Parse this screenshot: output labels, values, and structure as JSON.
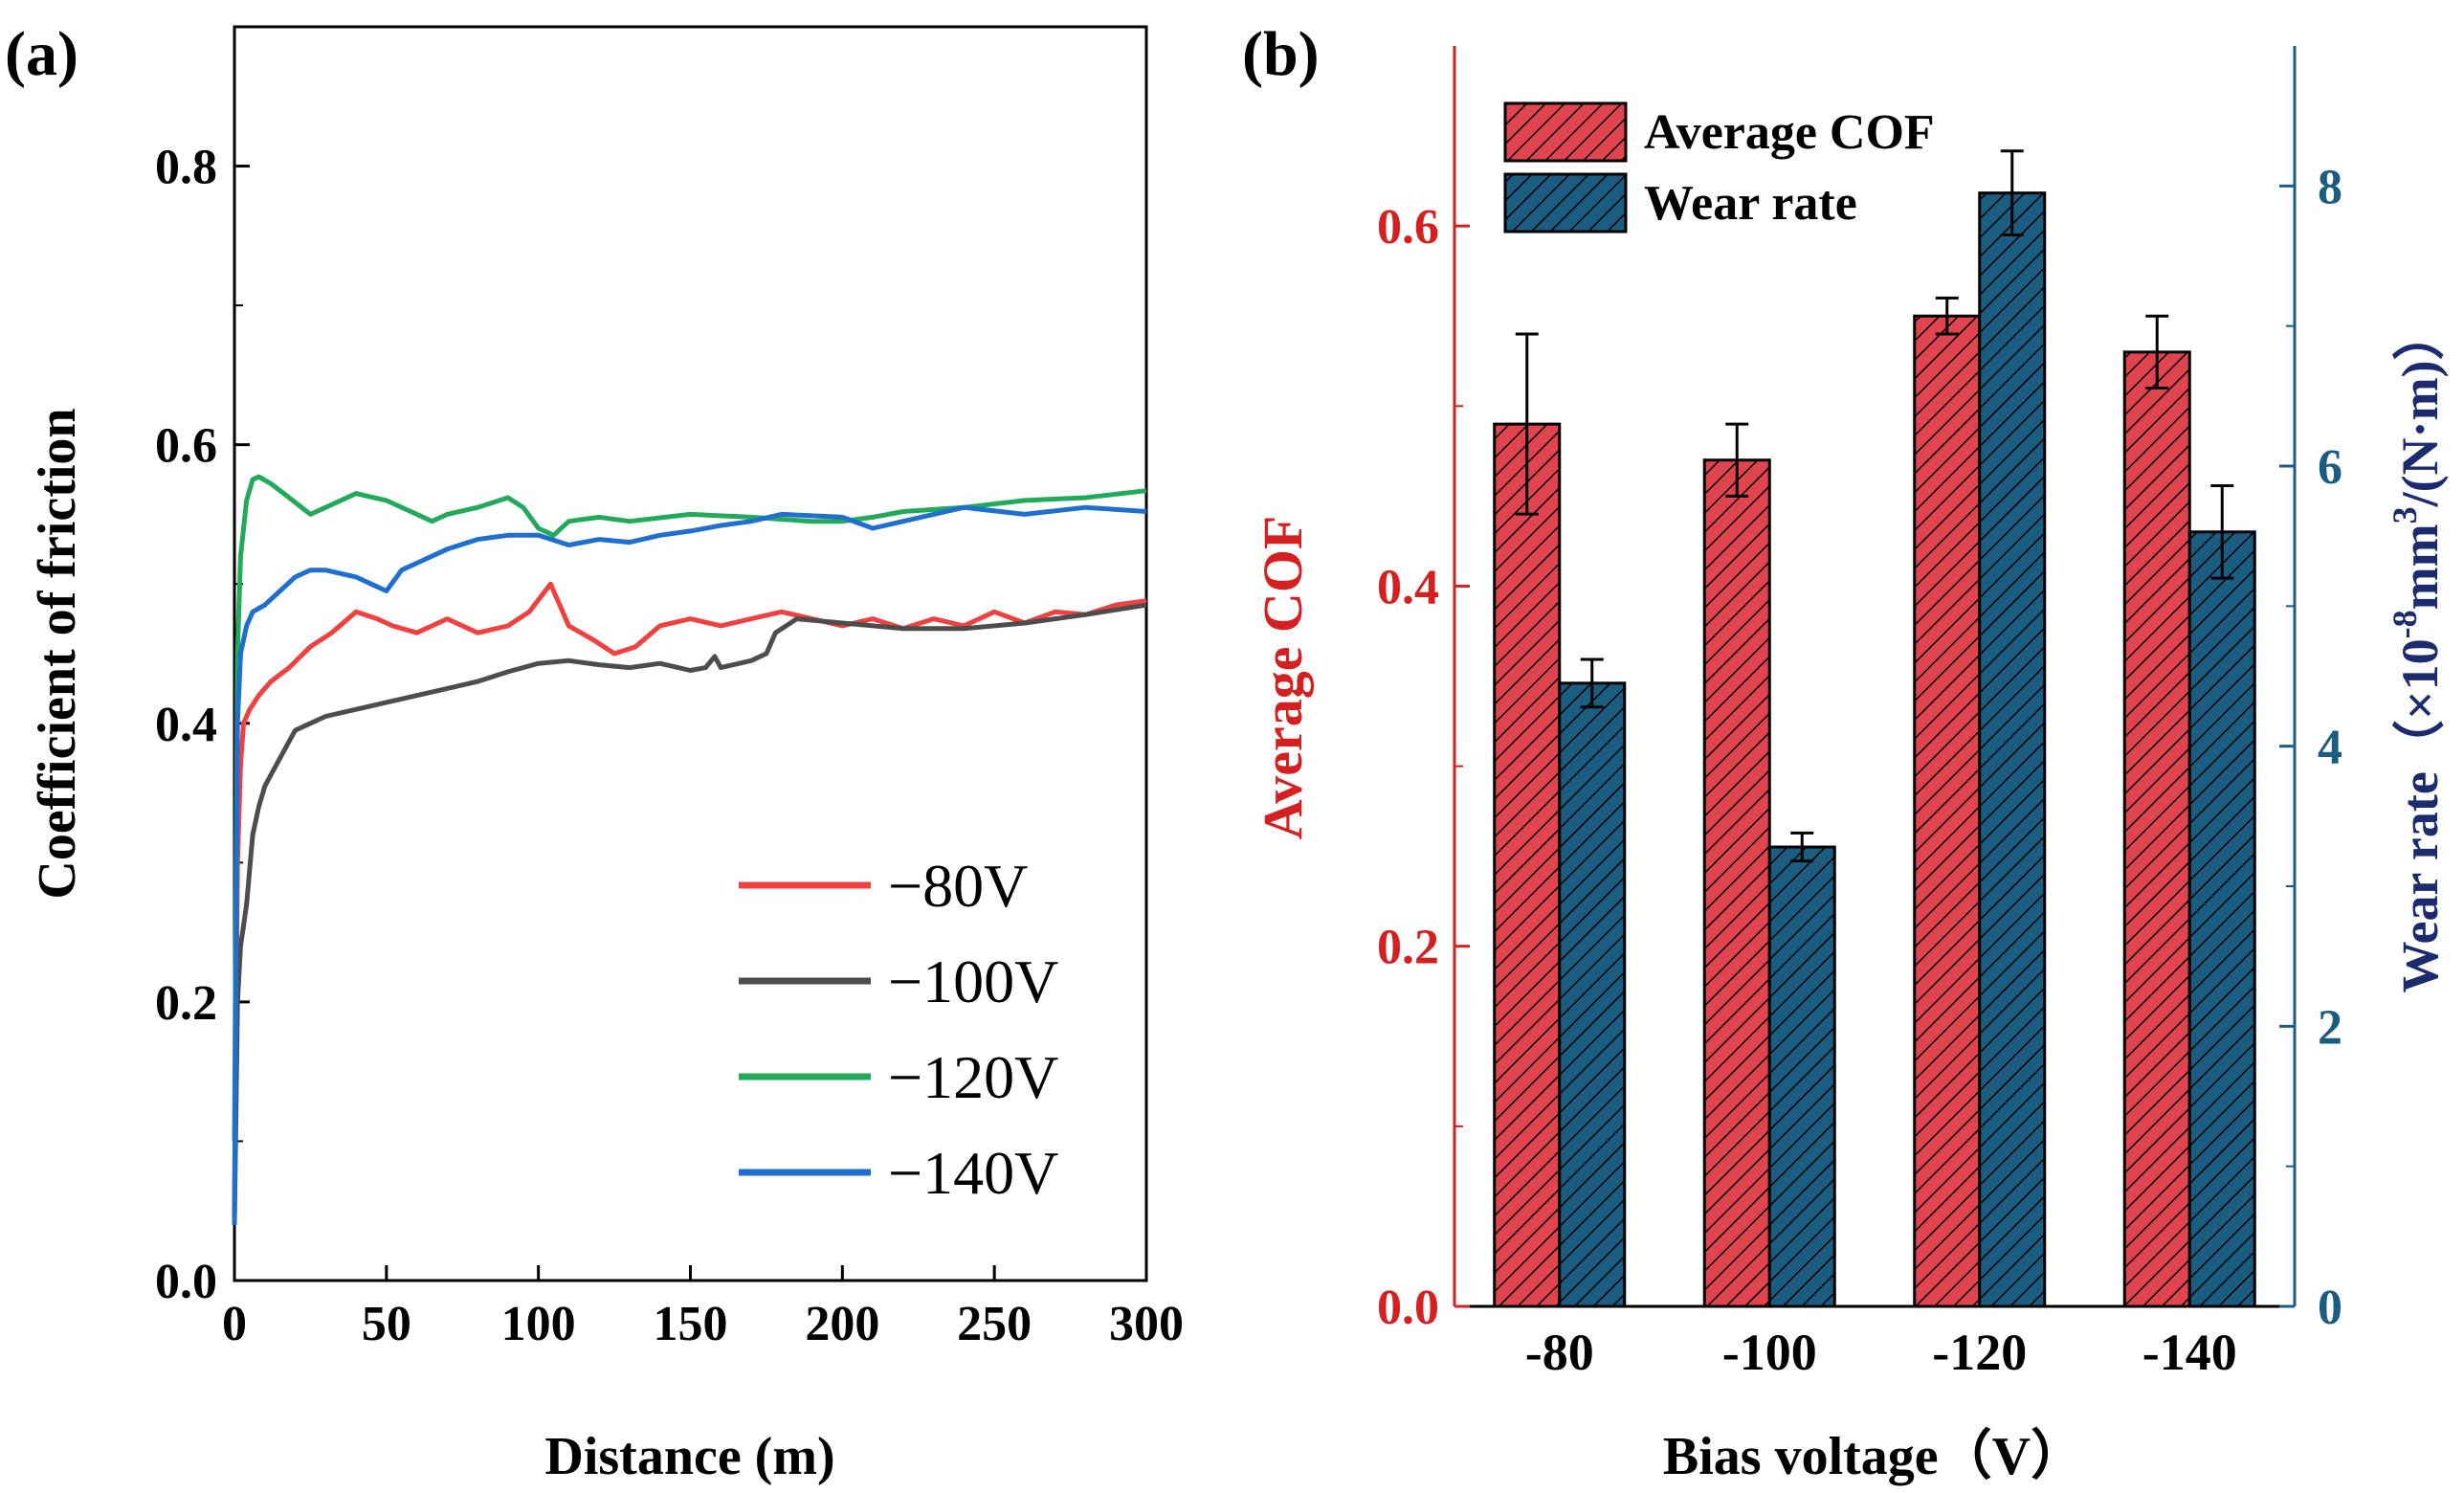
{
  "chart_data": [
    {
      "panel": "(a)",
      "type": "line",
      "xlabel": "Distance (m)",
      "ylabel": "Coefficient of friction",
      "xlim": [
        0,
        300
      ],
      "ylim": [
        0.0,
        0.9
      ],
      "xticks": [
        0,
        50,
        100,
        150,
        200,
        250,
        300
      ],
      "yticks": [
        0.0,
        0.2,
        0.4,
        0.6,
        0.8
      ],
      "legend_position": "bottom-right",
      "series": [
        {
          "name": "−80V",
          "color": "#f04040",
          "x": [
            0,
            1,
            2,
            3,
            5,
            8,
            12,
            18,
            25,
            32,
            40,
            47,
            52,
            60,
            70,
            80,
            90,
            97,
            104,
            110,
            118,
            125,
            132,
            140,
            150,
            160,
            170,
            180,
            190,
            200,
            210,
            220,
            230,
            240,
            250,
            260,
            270,
            280,
            290,
            300
          ],
          "y": [
            0.05,
            0.3,
            0.37,
            0.4,
            0.41,
            0.42,
            0.43,
            0.44,
            0.455,
            0.465,
            0.48,
            0.475,
            0.47,
            0.465,
            0.475,
            0.465,
            0.47,
            0.48,
            0.5,
            0.47,
            0.46,
            0.45,
            0.455,
            0.47,
            0.475,
            0.47,
            0.475,
            0.48,
            0.475,
            0.47,
            0.475,
            0.468,
            0.475,
            0.47,
            0.48,
            0.472,
            0.48,
            0.478,
            0.485,
            0.488
          ]
        },
        {
          "name": "−100V",
          "color": "#4d4d4d",
          "x": [
            0,
            1,
            2,
            4,
            6,
            8,
            10,
            15,
            20,
            25,
            30,
            40,
            50,
            60,
            70,
            80,
            90,
            100,
            110,
            120,
            130,
            140,
            150,
            155,
            158,
            160,
            170,
            175,
            178,
            185,
            200,
            220,
            240,
            260,
            280,
            300
          ],
          "y": [
            0.04,
            0.2,
            0.24,
            0.27,
            0.32,
            0.34,
            0.355,
            0.375,
            0.395,
            0.4,
            0.405,
            0.41,
            0.415,
            0.42,
            0.425,
            0.43,
            0.437,
            0.443,
            0.445,
            0.442,
            0.44,
            0.443,
            0.438,
            0.44,
            0.448,
            0.44,
            0.445,
            0.45,
            0.465,
            0.475,
            0.472,
            0.468,
            0.468,
            0.472,
            0.478,
            0.485
          ]
        },
        {
          "name": "−120V",
          "color": "#22aa5a",
          "x": [
            0,
            1,
            2,
            4,
            6,
            8,
            12,
            18,
            25,
            30,
            40,
            50,
            60,
            65,
            70,
            80,
            90,
            95,
            100,
            105,
            110,
            120,
            130,
            150,
            170,
            190,
            200,
            210,
            220,
            240,
            260,
            280,
            300
          ],
          "y": [
            0.1,
            0.45,
            0.52,
            0.56,
            0.575,
            0.577,
            0.572,
            0.562,
            0.55,
            0.555,
            0.565,
            0.56,
            0.55,
            0.545,
            0.55,
            0.555,
            0.562,
            0.555,
            0.54,
            0.535,
            0.545,
            0.548,
            0.545,
            0.55,
            0.548,
            0.545,
            0.545,
            0.548,
            0.552,
            0.555,
            0.56,
            0.562,
            0.567
          ]
        },
        {
          "name": "−140V",
          "color": "#1f6fce",
          "x": [
            0,
            1,
            2,
            4,
            6,
            10,
            15,
            20,
            25,
            30,
            40,
            45,
            50,
            55,
            60,
            70,
            80,
            90,
            100,
            110,
            120,
            130,
            140,
            150,
            160,
            170,
            180,
            200,
            210,
            220,
            230,
            240,
            260,
            280,
            300
          ],
          "y": [
            0.04,
            0.4,
            0.45,
            0.47,
            0.48,
            0.485,
            0.495,
            0.505,
            0.51,
            0.51,
            0.505,
            0.5,
            0.495,
            0.51,
            0.515,
            0.525,
            0.532,
            0.535,
            0.535,
            0.528,
            0.532,
            0.53,
            0.535,
            0.538,
            0.542,
            0.545,
            0.55,
            0.548,
            0.54,
            0.545,
            0.55,
            0.555,
            0.55,
            0.555,
            0.552
          ]
        }
      ]
    },
    {
      "panel": "(b)",
      "type": "bar",
      "xlabel": "Bias voltage（V）",
      "ylabel_left": "Average COF",
      "ylabel_right_prefix": "Wear rate（×10",
      "ylabel_right_exp1": "-8",
      "ylabel_right_mid": "mm",
      "ylabel_right_exp2": "3",
      "ylabel_right_suffix": "/(N·m)）",
      "categories": [
        "-80",
        "-100",
        "-120",
        "-140"
      ],
      "ylim_left": [
        0.0,
        0.7
      ],
      "ylim_right": [
        0,
        9
      ],
      "yticks_left": [
        0.0,
        0.2,
        0.4,
        0.6
      ],
      "yticks_right": [
        0,
        2,
        4,
        6,
        8
      ],
      "legend_position": "top-left",
      "series": [
        {
          "name": "Average COF",
          "axis": "left",
          "color": "#e0454f",
          "values": [
            0.49,
            0.47,
            0.55,
            0.53
          ],
          "errors": [
            0.05,
            0.02,
            0.01,
            0.02
          ]
        },
        {
          "name": "Wear rate",
          "axis": "right",
          "color": "#1a5d80",
          "values": [
            4.45,
            3.28,
            7.95,
            5.53
          ],
          "errors": [
            0.17,
            0.1,
            0.3,
            0.33
          ]
        }
      ]
    }
  ],
  "colors": {
    "left_axis": "#d42020",
    "right_axis": "#1c5c80",
    "right_label": "#1c2a6e"
  }
}
